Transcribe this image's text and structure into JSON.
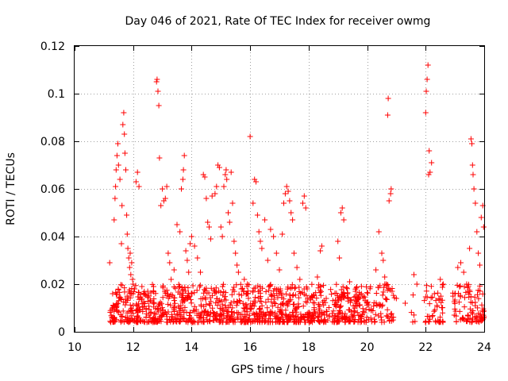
{
  "chart_data": {
    "type": "scatter",
    "title": "Day 046 of 2021, Rate Of TEC Index for receiver owmg",
    "xlabel": "GPS time / hours",
    "ylabel": "ROTI / TECUs",
    "xlim": [
      10,
      24
    ],
    "ylim": [
      0,
      0.12
    ],
    "x_ticks": [
      10,
      12,
      14,
      16,
      18,
      20,
      22,
      24
    ],
    "x_tick_labels": [
      "10",
      "12",
      "14",
      "16",
      "18",
      "20",
      "22",
      "24"
    ],
    "y_ticks": [
      0,
      0.02,
      0.04,
      0.06,
      0.08,
      0.1,
      0.12
    ],
    "y_tick_labels": [
      "0",
      "0.02",
      "0.04",
      "0.06",
      "0.08",
      "0.1",
      "0.12"
    ],
    "grid": true,
    "marker": "+",
    "color": "#ff0000",
    "series": [
      {
        "values": [
          [
            11.2,
            0.029
          ],
          [
            11.3,
            0.016
          ],
          [
            11.35,
            0.047
          ],
          [
            11.38,
            0.056
          ],
          [
            11.4,
            0.061
          ],
          [
            11.42,
            0.068
          ],
          [
            11.45,
            0.074
          ],
          [
            11.48,
            0.079
          ],
          [
            11.5,
            0.07
          ],
          [
            11.55,
            0.064
          ],
          [
            11.6,
            0.037
          ],
          [
            11.62,
            0.053
          ],
          [
            11.65,
            0.087
          ],
          [
            11.68,
            0.092
          ],
          [
            11.7,
            0.083
          ],
          [
            11.72,
            0.075
          ],
          [
            11.75,
            0.068
          ],
          [
            11.78,
            0.049
          ],
          [
            11.8,
            0.041
          ],
          [
            11.82,
            0.035
          ],
          [
            11.85,
            0.031
          ],
          [
            11.88,
            0.027
          ],
          [
            11.9,
            0.033
          ],
          [
            11.92,
            0.024
          ],
          [
            11.95,
            0.029
          ],
          [
            11.98,
            0.022
          ],
          [
            12.0,
            0.02
          ],
          [
            12.05,
            0.018
          ],
          [
            12.1,
            0.063
          ],
          [
            12.15,
            0.067
          ],
          [
            12.2,
            0.061
          ],
          [
            12.3,
            0.019
          ],
          [
            12.5,
            0.017
          ],
          [
            12.7,
            0.019
          ],
          [
            12.8,
            0.105
          ],
          [
            12.82,
            0.106
          ],
          [
            12.85,
            0.101
          ],
          [
            12.88,
            0.095
          ],
          [
            12.9,
            0.073
          ],
          [
            12.95,
            0.053
          ],
          [
            13.0,
            0.06
          ],
          [
            13.05,
            0.055
          ],
          [
            13.1,
            0.056
          ],
          [
            13.15,
            0.061
          ],
          [
            13.2,
            0.033
          ],
          [
            13.25,
            0.029
          ],
          [
            13.3,
            0.022
          ],
          [
            13.4,
            0.026
          ],
          [
            13.5,
            0.045
          ],
          [
            13.6,
            0.042
          ],
          [
            13.65,
            0.06
          ],
          [
            13.7,
            0.064
          ],
          [
            13.72,
            0.068
          ],
          [
            13.75,
            0.074
          ],
          [
            13.8,
            0.034
          ],
          [
            13.85,
            0.03
          ],
          [
            13.9,
            0.025
          ],
          [
            13.95,
            0.037
          ],
          [
            14.0,
            0.04
          ],
          [
            14.1,
            0.036
          ],
          [
            14.2,
            0.031
          ],
          [
            14.3,
            0.025
          ],
          [
            14.4,
            0.066
          ],
          [
            14.45,
            0.065
          ],
          [
            14.5,
            0.056
          ],
          [
            14.55,
            0.046
          ],
          [
            14.6,
            0.044
          ],
          [
            14.65,
            0.039
          ],
          [
            14.7,
            0.057
          ],
          [
            14.8,
            0.058
          ],
          [
            14.85,
            0.061
          ],
          [
            14.9,
            0.07
          ],
          [
            14.95,
            0.069
          ],
          [
            15.0,
            0.044
          ],
          [
            15.05,
            0.04
          ],
          [
            15.1,
            0.061
          ],
          [
            15.15,
            0.066
          ],
          [
            15.18,
            0.068
          ],
          [
            15.2,
            0.064
          ],
          [
            15.25,
            0.05
          ],
          [
            15.3,
            0.046
          ],
          [
            15.35,
            0.067
          ],
          [
            15.4,
            0.054
          ],
          [
            15.45,
            0.038
          ],
          [
            15.5,
            0.033
          ],
          [
            15.55,
            0.028
          ],
          [
            15.6,
            0.025
          ],
          [
            15.7,
            0.018
          ],
          [
            15.8,
            0.022
          ],
          [
            15.9,
            0.02
          ],
          [
            16.0,
            0.082
          ],
          [
            16.1,
            0.054
          ],
          [
            16.15,
            0.064
          ],
          [
            16.2,
            0.063
          ],
          [
            16.25,
            0.049
          ],
          [
            16.3,
            0.042
          ],
          [
            16.35,
            0.038
          ],
          [
            16.4,
            0.035
          ],
          [
            16.5,
            0.047
          ],
          [
            16.6,
            0.03
          ],
          [
            16.7,
            0.043
          ],
          [
            16.8,
            0.04
          ],
          [
            16.9,
            0.033
          ],
          [
            17.0,
            0.026
          ],
          [
            17.1,
            0.041
          ],
          [
            17.15,
            0.054
          ],
          [
            17.2,
            0.058
          ],
          [
            17.25,
            0.061
          ],
          [
            17.3,
            0.059
          ],
          [
            17.35,
            0.055
          ],
          [
            17.4,
            0.05
          ],
          [
            17.45,
            0.047
          ],
          [
            17.5,
            0.033
          ],
          [
            17.6,
            0.027
          ],
          [
            17.7,
            0.022
          ],
          [
            17.8,
            0.054
          ],
          [
            17.85,
            0.057
          ],
          [
            17.9,
            0.052
          ],
          [
            17.95,
            0.018
          ],
          [
            18.1,
            0.015
          ],
          [
            18.3,
            0.023
          ],
          [
            18.4,
            0.034
          ],
          [
            18.45,
            0.036
          ],
          [
            18.6,
            0.014
          ],
          [
            19.0,
            0.038
          ],
          [
            19.05,
            0.031
          ],
          [
            19.1,
            0.05
          ],
          [
            19.15,
            0.052
          ],
          [
            19.2,
            0.047
          ],
          [
            19.4,
            0.021
          ],
          [
            19.6,
            0.017
          ],
          [
            19.8,
            0.016
          ],
          [
            20.0,
            0.012
          ],
          [
            20.3,
            0.026
          ],
          [
            20.4,
            0.042
          ],
          [
            20.5,
            0.033
          ],
          [
            20.55,
            0.03
          ],
          [
            20.6,
            0.023
          ],
          [
            20.65,
            0.02
          ],
          [
            20.7,
            0.091
          ],
          [
            20.72,
            0.098
          ],
          [
            20.75,
            0.055
          ],
          [
            20.8,
            0.058
          ],
          [
            20.82,
            0.06
          ],
          [
            20.85,
            0.017
          ],
          [
            21.0,
            0.014
          ],
          [
            21.3,
            0.012
          ],
          [
            21.6,
            0.024
          ],
          [
            21.7,
            0.02
          ],
          [
            22.0,
            0.092
          ],
          [
            22.02,
            0.101
          ],
          [
            22.05,
            0.106
          ],
          [
            22.08,
            0.112
          ],
          [
            22.1,
            0.066
          ],
          [
            22.12,
            0.076
          ],
          [
            22.15,
            0.067
          ],
          [
            22.2,
            0.071
          ],
          [
            22.3,
            0.016
          ],
          [
            22.5,
            0.022
          ],
          [
            22.6,
            0.02
          ],
          [
            23.0,
            0.016
          ],
          [
            23.1,
            0.027
          ],
          [
            23.2,
            0.029
          ],
          [
            23.3,
            0.025
          ],
          [
            23.4,
            0.02
          ],
          [
            23.5,
            0.035
          ],
          [
            23.55,
            0.081
          ],
          [
            23.58,
            0.079
          ],
          [
            23.6,
            0.07
          ],
          [
            23.62,
            0.066
          ],
          [
            23.65,
            0.06
          ],
          [
            23.7,
            0.054
          ],
          [
            23.75,
            0.042
          ],
          [
            23.8,
            0.033
          ],
          [
            23.85,
            0.028
          ],
          [
            23.9,
            0.048
          ],
          [
            23.95,
            0.053
          ],
          [
            23.98,
            0.044
          ]
        ]
      }
    ]
  }
}
